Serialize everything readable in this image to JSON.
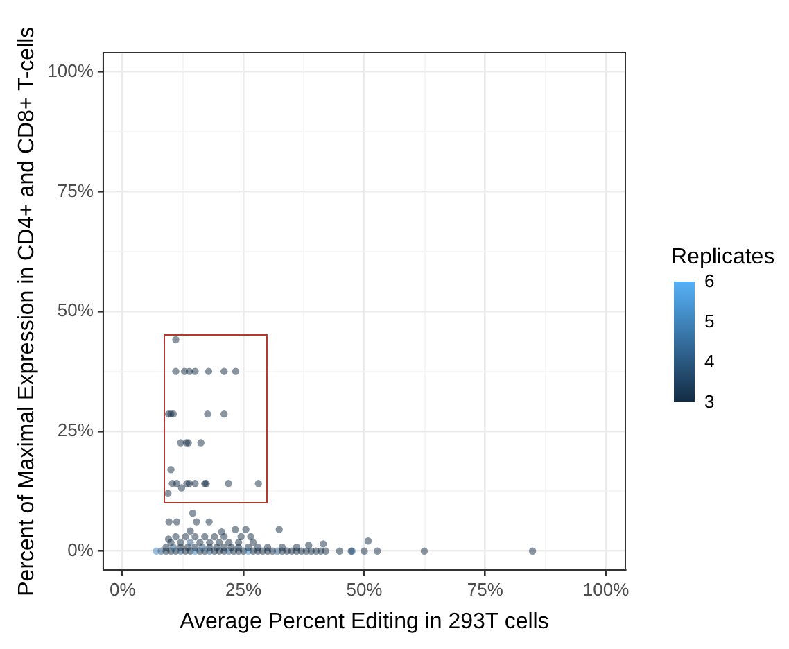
{
  "chart_data": {
    "type": "scatter",
    "xlabel": "Average Percent Editing in 293T cells",
    "ylabel": "Percent of Maximal Expression in CD4+ and CD8+ T-cells",
    "legend_title": "Replicates",
    "marker": "circle",
    "grid": true,
    "xlim": [
      -4,
      104
    ],
    "ylim": [
      -4,
      104
    ],
    "xticks": [
      {
        "value": 0,
        "label": "0%"
      },
      {
        "value": 12.5,
        "label": null
      },
      {
        "value": 25,
        "label": "25%"
      },
      {
        "value": 37.5,
        "label": null
      },
      {
        "value": 50,
        "label": "50%"
      },
      {
        "value": 62.5,
        "label": null
      },
      {
        "value": 75,
        "label": "75%"
      },
      {
        "value": 87.5,
        "label": null
      },
      {
        "value": 100,
        "label": "100%"
      }
    ],
    "yticks": [
      {
        "value": 0,
        "label": "0%"
      },
      {
        "value": 12.5,
        "label": null
      },
      {
        "value": 25,
        "label": "25%"
      },
      {
        "value": 37.5,
        "label": null
      },
      {
        "value": 50,
        "label": "50%"
      },
      {
        "value": 62.5,
        "label": null
      },
      {
        "value": 75,
        "label": "75%"
      },
      {
        "value": 87.5,
        "label": null
      },
      {
        "value": 100,
        "label": "100%"
      }
    ],
    "clim": [
      3,
      6
    ],
    "cticks": [
      3,
      4,
      5,
      6
    ],
    "x": [
      11.0,
      11.0,
      12.8,
      13.8,
      15.0,
      17.8,
      21.0,
      23.4,
      9.5,
      10.0,
      10.5,
      17.6,
      21.0,
      12.0,
      13.2,
      13.6,
      16.2,
      10.0,
      10.3,
      11.2,
      13.3,
      13.8,
      15.0,
      17.0,
      17.3,
      21.9,
      28.1,
      12.2,
      9.4,
      14.5,
      9.6,
      11.2,
      15.3,
      17.9,
      23.3,
      25.5,
      32.4,
      50.8,
      62.4,
      84.8,
      47.5,
      44.9,
      47.3,
      50.0,
      52.7,
      7.0,
      8.0,
      9.0,
      10.0,
      11.0,
      12.0,
      13.0,
      14.0,
      15.0,
      16.0,
      17.0,
      18.0,
      19.0,
      20.0,
      21.0,
      22.0,
      23.0,
      24.0,
      25.0,
      26.0,
      27.0,
      28.0,
      29.0,
      30.0,
      31.0,
      32.0,
      33.0,
      34.0,
      35.0,
      36.0,
      37.0,
      38.0,
      39.0,
      40.0,
      41.0,
      42.0,
      9.0,
      10.5,
      12.0,
      13.5,
      15.0,
      16.5,
      18.0,
      19.5,
      21.0,
      22.5,
      24.0,
      26.0,
      28.0,
      30.0,
      33.0,
      36.0,
      10.0,
      12.0,
      14.0,
      16.0,
      18.0,
      20.0,
      22.0,
      24.0,
      27.0,
      11.0,
      13.0,
      15.0,
      17.0,
      19.0,
      21.0,
      24.5,
      26.5,
      9.5,
      14.0,
      20.5,
      38.5,
      41.5
    ],
    "values": [
      44.1,
      37.5,
      37.5,
      37.5,
      37.5,
      37.5,
      37.5,
      37.5,
      28.6,
      28.6,
      28.6,
      28.6,
      28.6,
      22.6,
      22.6,
      22.6,
      22.6,
      17.0,
      14.1,
      14.1,
      14.1,
      14.1,
      14.1,
      14.1,
      14.1,
      14.1,
      14.1,
      13.2,
      12.0,
      7.9,
      6.1,
      6.1,
      6.1,
      6.1,
      4.5,
      4.5,
      4.5,
      2.1,
      0,
      0,
      0,
      0,
      0,
      0,
      0,
      0,
      0,
      0,
      0,
      0,
      0,
      0,
      0,
      0,
      0,
      0,
      0,
      0,
      0,
      0,
      0,
      0,
      0,
      0,
      0,
      0,
      0,
      0,
      0,
      0,
      0,
      0,
      0,
      0,
      0,
      0,
      0,
      0,
      0,
      0,
      0,
      0.8,
      0.8,
      0.8,
      0.8,
      0.8,
      0.8,
      0.8,
      0.8,
      0.8,
      0.8,
      0.8,
      0.8,
      0.8,
      0.8,
      0.8,
      0.8,
      1.8,
      1.8,
      1.8,
      1.8,
      1.8,
      1.8,
      1.8,
      1.8,
      1.8,
      3.0,
      3.0,
      3.0,
      3.0,
      3.0,
      3.0,
      3.0,
      3.0,
      2.5,
      4.2,
      4.0,
      1.2,
      1.5
    ],
    "cvalues": [
      3,
      3,
      3,
      3,
      3,
      3,
      3,
      3,
      3,
      3,
      3,
      3,
      3,
      3,
      3,
      3,
      3,
      3,
      3,
      3,
      3,
      3,
      3,
      3,
      3,
      3,
      3,
      3,
      3,
      3,
      3,
      3,
      3,
      3,
      3,
      3,
      3,
      3,
      3,
      3,
      5,
      3,
      3,
      3,
      3,
      5,
      4,
      3,
      3,
      3,
      4,
      3,
      3,
      5,
      3,
      3,
      4,
      3,
      3,
      3,
      4,
      3,
      3,
      3,
      5,
      3,
      3,
      3,
      3,
      3,
      4,
      3,
      3,
      3,
      3,
      3,
      3,
      3,
      3,
      3,
      3,
      3,
      4,
      3,
      3,
      3,
      4,
      3,
      3,
      3,
      3,
      3,
      3,
      3,
      3,
      3,
      3,
      3,
      3,
      4,
      3,
      3,
      3,
      3,
      3,
      3,
      3,
      3,
      3,
      3,
      3,
      3,
      3,
      3,
      3,
      3,
      3,
      3,
      3
    ]
  }
}
